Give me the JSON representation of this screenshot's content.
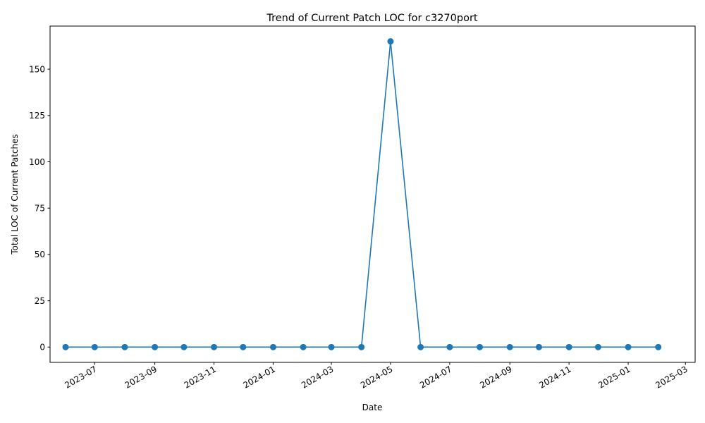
{
  "chart_data": {
    "type": "line",
    "title": "Trend of Current Patch LOC for c3270port",
    "xlabel": "Date",
    "ylabel": "Total LOC of Current Patches",
    "x_type": "date",
    "xlim": [
      "2023-05-16",
      "2025-03-11"
    ],
    "ylim": [
      -8.25,
      173.25
    ],
    "x_ticks": [
      "2023-07-01",
      "2023-09-01",
      "2023-11-01",
      "2024-01-01",
      "2024-03-01",
      "2024-05-01",
      "2024-07-01",
      "2024-09-01",
      "2024-11-01",
      "2025-01-01",
      "2025-03-01"
    ],
    "y_ticks": [
      0,
      25,
      50,
      75,
      100,
      125,
      150
    ],
    "grid": false,
    "legend": "none",
    "series": [
      {
        "color": "#1f77b4",
        "marker": "circle",
        "points": [
          {
            "x": "2023-06-01",
            "y": 0
          },
          {
            "x": "2023-07-01",
            "y": 0
          },
          {
            "x": "2023-08-01",
            "y": 0
          },
          {
            "x": "2023-09-01",
            "y": 0
          },
          {
            "x": "2023-10-01",
            "y": 0
          },
          {
            "x": "2023-11-01",
            "y": 0
          },
          {
            "x": "2023-12-01",
            "y": 0
          },
          {
            "x": "2024-01-01",
            "y": 0
          },
          {
            "x": "2024-02-01",
            "y": 0
          },
          {
            "x": "2024-03-01",
            "y": 0
          },
          {
            "x": "2024-04-01",
            "y": 0
          },
          {
            "x": "2024-05-01",
            "y": 165
          },
          {
            "x": "2024-06-01",
            "y": 0
          },
          {
            "x": "2024-07-01",
            "y": 0
          },
          {
            "x": "2024-08-01",
            "y": 0
          },
          {
            "x": "2024-09-01",
            "y": 0
          },
          {
            "x": "2024-10-01",
            "y": 0
          },
          {
            "x": "2024-11-01",
            "y": 0
          },
          {
            "x": "2024-12-01",
            "y": 0
          },
          {
            "x": "2025-01-01",
            "y": 0
          },
          {
            "x": "2025-02-01",
            "y": 0
          }
        ]
      }
    ]
  }
}
